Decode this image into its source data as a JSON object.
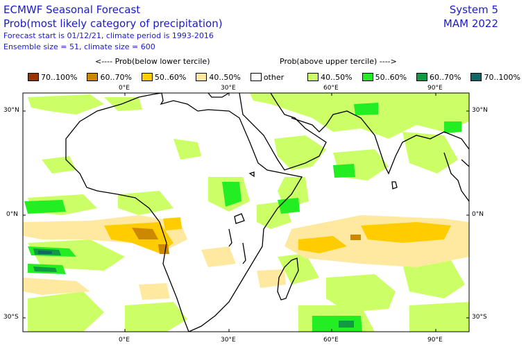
{
  "header": {
    "title": "ECMWF Seasonal Forecast",
    "subtitle": "Prob(most likely category of precipitation)",
    "line3": "Forecast start is 01/12/21, climate period is 1993-2016",
    "line4": "Ensemble size = 51, climate size = 600",
    "system": "System 5",
    "season": "MAM 2022"
  },
  "legend": {
    "below_label": "<---- Prob(below lower tercile)",
    "above_label": "Prob(above upper tercile) ---->",
    "items": [
      {
        "label": "70..100%",
        "color": "#993300"
      },
      {
        "label": "60..70%",
        "color": "#cc8800"
      },
      {
        "label": "50..60%",
        "color": "#ffcc00"
      },
      {
        "label": "40..50%",
        "color": "#ffe9a0"
      },
      {
        "label": "other",
        "color": "#ffffff"
      },
      {
        "label": "40..50%",
        "color": "#ccff66"
      },
      {
        "label": "50..60%",
        "color": "#22ee22"
      },
      {
        "label": "60..70%",
        "color": "#119944"
      },
      {
        "label": "70..100%",
        "color": "#116666"
      }
    ]
  },
  "axes": {
    "lon_labels": [
      "0°E",
      "30°E",
      "60°E",
      "90°E"
    ],
    "lat_labels": [
      "30°N",
      "0°N",
      "30°S"
    ]
  }
}
